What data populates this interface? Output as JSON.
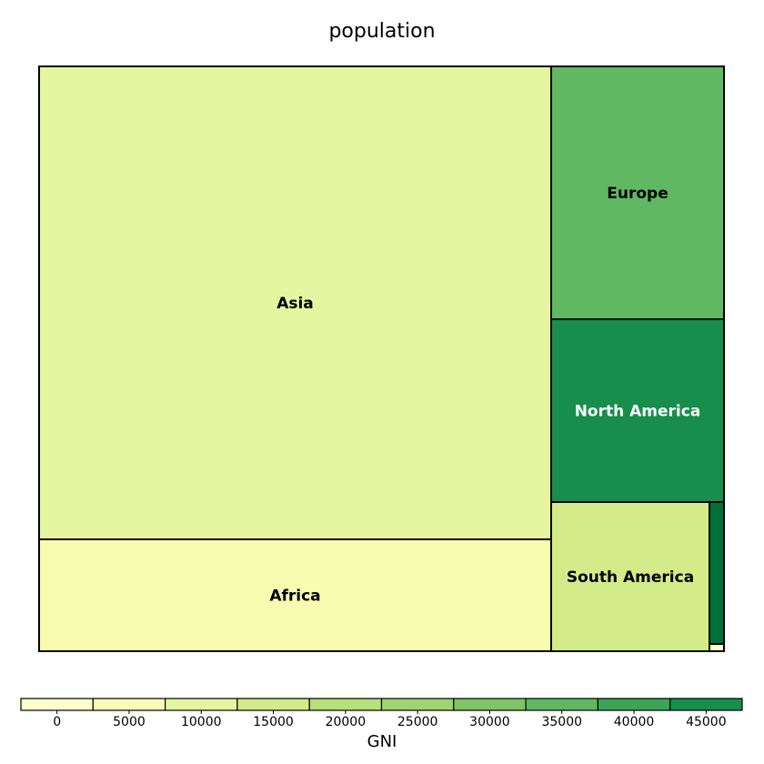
{
  "chart_data": {
    "type": "treemap",
    "title": "population",
    "size_variable": "population",
    "color_variable": "GNI",
    "palette": [
      "#ffffcc",
      "#f7fcb9",
      "#e6f5a0",
      "#d3eb88",
      "#b7df7a",
      "#9fd56f",
      "#80c565",
      "#60b862",
      "#3aa556",
      "#178e4b",
      "#00703a"
    ],
    "items": [
      {
        "label": "Asia",
        "fill": "#e6f5a0",
        "label_color": "#000000"
      },
      {
        "label": "Africa",
        "fill": "#f7fcb0",
        "label_color": "#000000"
      },
      {
        "label": "Europe",
        "fill": "#60b862",
        "label_color": "#000000"
      },
      {
        "label": "North America",
        "fill": "#178e4b",
        "label_color": "#ffffff"
      },
      {
        "label": "South America",
        "fill": "#d3eb88",
        "label_color": "#000000"
      },
      {
        "label": "",
        "fill": "#00703a",
        "label_color": "#ffffff"
      },
      {
        "label": "",
        "fill": "#ffffcc",
        "label_color": "#000000"
      }
    ],
    "legend": {
      "title": "GNI",
      "ticks": [
        "0",
        "5000",
        "10000",
        "15000",
        "20000",
        "25000",
        "30000",
        "35000",
        "40000",
        "45000"
      ],
      "bins": [
        "#ffffcc",
        "#f7fcb9",
        "#e6f5a0",
        "#d3eb88",
        "#b7df7a",
        "#9fd56f",
        "#80c565",
        "#60b862",
        "#3aa556",
        "#178e4b",
        "#00703a"
      ]
    }
  }
}
